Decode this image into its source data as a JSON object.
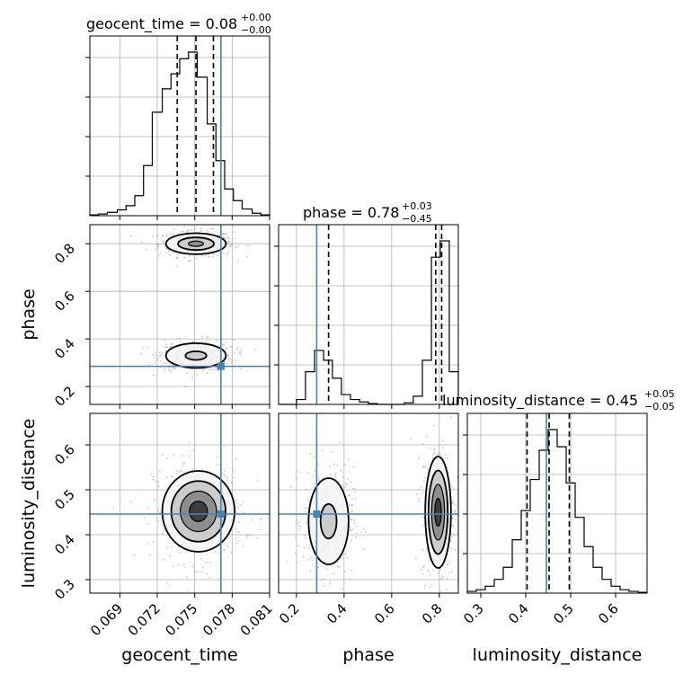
{
  "figure": {
    "parameters": [
      "geocent_time",
      "phase",
      "luminosity_distance"
    ],
    "titles": [
      {
        "prefix": "geocent_time = 0.08",
        "plus": "+0.00",
        "minus": "−0.00"
      },
      {
        "prefix": "phase = 0.78",
        "plus": "+0.03",
        "minus": "−0.45"
      },
      {
        "prefix": "luminosity_distance = 0.45",
        "plus": "+0.05",
        "minus": "−0.05"
      }
    ],
    "axis_labels": {
      "x": [
        "geocent_time",
        "phase",
        "luminosity_distance"
      ],
      "y": [
        "phase",
        "luminosity_distance"
      ]
    },
    "colors": {
      "truth": "#4682b4",
      "hist": "#000000",
      "grid": "#b0b0b0"
    }
  },
  "chart_data": {
    "type": "corner",
    "truths": {
      "geocent_time": 0.0771,
      "phase": 0.285,
      "luminosity_distance": 0.446
    },
    "ranges": {
      "geocent_time": [
        0.0666,
        0.081
      ],
      "phase": [
        0.125,
        0.88
      ],
      "luminosity_distance": [
        0.27,
        0.67
      ]
    },
    "ticks": {
      "geocent_time": [
        "0.069",
        "0.072",
        "0.075",
        "0.078",
        "0.081"
      ],
      "phase": [
        "0.2",
        "0.4",
        "0.6",
        "0.8"
      ],
      "luminosity_distance": [
        "0.3",
        "0.4",
        "0.5",
        "0.6"
      ]
    },
    "tick_values": {
      "geocent_time": [
        0.069,
        0.072,
        0.075,
        0.078,
        0.081
      ],
      "phase": [
        0.2,
        0.4,
        0.6,
        0.8
      ],
      "luminosity_distance": [
        0.3,
        0.4,
        0.5,
        0.6
      ]
    },
    "quantiles": {
      "geocent_time": [
        0.0736,
        0.0751,
        0.0765
      ],
      "phase": [
        0.335,
        0.785,
        0.81
      ],
      "luminosity_distance": [
        0.403,
        0.452,
        0.497
      ]
    },
    "histograms": {
      "geocent_time": {
        "edges": [
          0.0666,
          0.0673,
          0.068,
          0.0688,
          0.0695,
          0.0702,
          0.0709,
          0.0716,
          0.0724,
          0.0731,
          0.0738,
          0.0745,
          0.0752,
          0.076,
          0.0767,
          0.0774,
          0.0781,
          0.0788,
          0.0796,
          0.0803,
          0.081
        ],
        "counts": [
          0.005,
          0.01,
          0.02,
          0.035,
          0.06,
          0.12,
          0.3,
          0.62,
          0.76,
          0.85,
          0.94,
          0.98,
          0.83,
          0.55,
          0.33,
          0.16,
          0.09,
          0.04,
          0.015,
          0.005
        ]
      },
      "phase": {
        "edges": [
          0.125,
          0.163,
          0.2,
          0.238,
          0.276,
          0.314,
          0.351,
          0.389,
          0.427,
          0.465,
          0.502,
          0.54,
          0.578,
          0.616,
          0.653,
          0.691,
          0.729,
          0.767,
          0.804,
          0.842,
          0.88
        ],
        "counts": [
          0.0,
          0.0,
          0.03,
          0.2,
          0.33,
          0.27,
          0.16,
          0.06,
          0.03,
          0.015,
          0.005,
          0.0,
          0.0,
          0.0,
          0.01,
          0.05,
          0.27,
          0.9,
          1.0,
          0.2
        ]
      },
      "luminosity_distance": {
        "edges": [
          0.27,
          0.29,
          0.31,
          0.33,
          0.35,
          0.37,
          0.39,
          0.41,
          0.43,
          0.45,
          0.47,
          0.49,
          0.51,
          0.53,
          0.55,
          0.57,
          0.59,
          0.61,
          0.63,
          0.65,
          0.67
        ],
        "counts": [
          0.01,
          0.02,
          0.04,
          0.08,
          0.15,
          0.31,
          0.48,
          0.66,
          0.83,
          0.95,
          0.85,
          0.64,
          0.44,
          0.27,
          0.15,
          0.08,
          0.04,
          0.02,
          0.01,
          0.005
        ]
      }
    },
    "contours_2d": {
      "phase_vs_geocent_time": {
        "modes": [
          {
            "cx": 0.0751,
            "cy": 0.8,
            "sx": 0.0012,
            "sy": 0.022,
            "levels": [
              2.0,
              1.2,
              0.5
            ]
          },
          {
            "cx": 0.0751,
            "cy": 0.33,
            "sx": 0.0012,
            "sy": 0.026,
            "levels": [
              2.0,
              0.7
            ]
          }
        ]
      },
      "luminosity_distance_vs_geocent_time": {
        "modes": [
          {
            "cx": 0.0753,
            "cy": 0.452,
            "sx": 0.00145,
            "sy": 0.045,
            "levels": [
              2.0,
              1.5,
              1.0,
              0.5
            ]
          }
        ]
      },
      "luminosity_distance_vs_phase": {
        "modes": [
          {
            "cx": 0.335,
            "cy": 0.43,
            "sx": 0.042,
            "sy": 0.048,
            "levels": [
              2.0,
              0.8
            ]
          },
          {
            "cx": 0.795,
            "cy": 0.45,
            "sx": 0.027,
            "sy": 0.062,
            "levels": [
              2.0,
              1.5,
              1.0,
              0.5
            ]
          }
        ]
      }
    }
  }
}
